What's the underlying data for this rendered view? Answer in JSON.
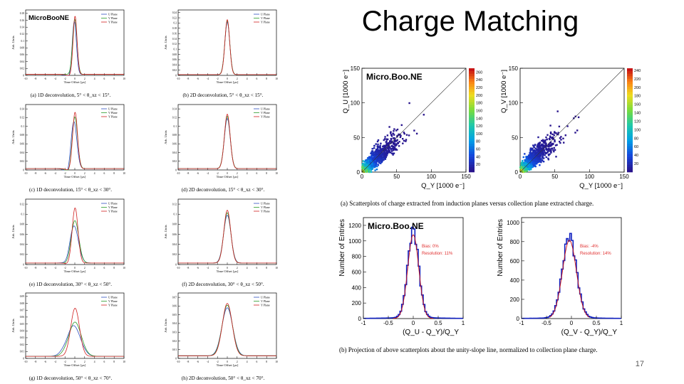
{
  "slide": {
    "title": "Charge Matching",
    "page_number": "17"
  },
  "chart_data": [
    {
      "type": "line",
      "panel": "a",
      "caption": "(a) 1D deconvolution, 5° < θ_xz < 15°.",
      "logo": "MicroBooNE",
      "xlabel": "Time Offset [µs]",
      "ylabel": "Arb. Units",
      "x_ticks": [
        "-10",
        "-8",
        "-6",
        "-4",
        "-2",
        "0",
        "2",
        "4",
        "6",
        "8",
        "10"
      ],
      "y_ticks": [
        "0",
        "0.02",
        "0.04",
        "0.06",
        "0.08",
        "0.1",
        "0.12",
        "0.14",
        "0.16",
        "0.18"
      ],
      "ylim": [
        0,
        0.19
      ],
      "legend": [
        "U Plane",
        "V Plane",
        "Y Plane"
      ],
      "series": [
        {
          "name": "U Plane",
          "peak": 0.155,
          "center": -0.1,
          "width": 0.42,
          "undershoot": 0.008
        },
        {
          "name": "V Plane",
          "peak": 0.16,
          "center": 0.0,
          "width": 0.45,
          "undershoot": 0.0
        },
        {
          "name": "Y Plane",
          "peak": 0.17,
          "center": 0.05,
          "width": 0.4,
          "undershoot": 0.004
        }
      ]
    },
    {
      "type": "line",
      "panel": "b",
      "caption": "(b) 2D deconvolution, 5° < θ_xz < 15°.",
      "xlabel": "Time Offset [µs]",
      "ylabel": "Arb. Units",
      "x_ticks": [
        "-10",
        "-8",
        "-6",
        "-4",
        "-2",
        "0",
        "2",
        "4",
        "6",
        "8",
        "10"
      ],
      "y_ticks": [
        "0",
        "0.02",
        "0.04",
        "0.06",
        "0.08",
        "0.1",
        "0.12",
        "0.14",
        "0.16",
        "0.18",
        "0.2",
        "0.22",
        "0.24"
      ],
      "ylim": [
        0,
        0.25
      ],
      "legend": [
        "U Plane",
        "V Plane",
        "Y Plane"
      ],
      "series": [
        {
          "name": "U Plane",
          "peak": 0.2,
          "center": 0.0,
          "width": 0.5,
          "undershoot": 0
        },
        {
          "name": "V Plane",
          "peak": 0.205,
          "center": 0.0,
          "width": 0.5,
          "undershoot": 0
        },
        {
          "name": "Y Plane",
          "peak": 0.21,
          "center": 0.0,
          "width": 0.48,
          "undershoot": 0
        }
      ]
    },
    {
      "type": "line",
      "panel": "c",
      "caption": "(c) 1D deconvolution, 15° < θ_xz < 30°.",
      "xlabel": "Time Offset [µs]",
      "ylabel": "Arb. Units",
      "x_ticks": [
        "-10",
        "-8",
        "-6",
        "-4",
        "-2",
        "0",
        "2",
        "4",
        "6",
        "8",
        "10"
      ],
      "y_ticks": [
        "0",
        "0.02",
        "0.04",
        "0.06",
        "0.08",
        "0.1",
        "0.12",
        "0.14"
      ],
      "ylim": [
        0,
        0.15
      ],
      "legend": [
        "U Plane",
        "V Plane",
        "Y Plane"
      ],
      "series": [
        {
          "name": "U Plane",
          "peak": 0.11,
          "center": -0.2,
          "width": 0.6,
          "undershoot": 0.015
        },
        {
          "name": "V Plane",
          "peak": 0.12,
          "center": 0.0,
          "width": 0.55,
          "undershoot": 0.01
        },
        {
          "name": "Y Plane",
          "peak": 0.13,
          "center": 0.05,
          "width": 0.5,
          "undershoot": 0.004
        }
      ]
    },
    {
      "type": "line",
      "panel": "d",
      "caption": "(d) 2D deconvolution, 15° < θ_xz < 30°.",
      "xlabel": "Time Offset [µs]",
      "ylabel": "Arb. Units",
      "x_ticks": [
        "-10",
        "-8",
        "-6",
        "-4",
        "-2",
        "0",
        "2",
        "4",
        "6",
        "8",
        "10"
      ],
      "y_ticks": [
        "0",
        "0.02",
        "0.04",
        "0.06",
        "0.08",
        "0.1",
        "0.12",
        "0.14"
      ],
      "ylim": [
        0,
        0.15
      ],
      "legend": [
        "U Plane",
        "V Plane",
        "Y Plane"
      ],
      "series": [
        {
          "name": "U Plane",
          "peak": 0.115,
          "center": 0.0,
          "width": 0.6,
          "undershoot": 0
        },
        {
          "name": "V Plane",
          "peak": 0.12,
          "center": 0.0,
          "width": 0.6,
          "undershoot": 0
        },
        {
          "name": "Y Plane",
          "peak": 0.125,
          "center": 0.0,
          "width": 0.58,
          "undershoot": 0
        }
      ]
    },
    {
      "type": "line",
      "panel": "e",
      "caption": "(e) 1D deconvolution, 30° < θ_xz < 50°.",
      "xlabel": "Time Offset [µs]",
      "ylabel": "Arb. Units",
      "x_ticks": [
        "-10",
        "-8",
        "-6",
        "-4",
        "-2",
        "0",
        "2",
        "4",
        "6",
        "8",
        "10"
      ],
      "y_ticks": [
        "0",
        "0.02",
        "0.04",
        "0.06",
        "0.08",
        "0.1",
        "0.12"
      ],
      "ylim": [
        0,
        0.13
      ],
      "legend": [
        "U Plane",
        "V Plane",
        "Y Plane"
      ],
      "series": [
        {
          "name": "U Plane",
          "peak": 0.075,
          "center": -0.2,
          "width": 0.9,
          "undershoot": 0.01
        },
        {
          "name": "V Plane",
          "peak": 0.085,
          "center": 0.0,
          "width": 0.8,
          "undershoot": 0.006
        },
        {
          "name": "Y Plane",
          "peak": 0.11,
          "center": 0.05,
          "width": 0.6,
          "undershoot": 0.003
        }
      ]
    },
    {
      "type": "line",
      "panel": "f",
      "caption": "(f) 2D deconvolution, 30° < θ_xz < 50°.",
      "xlabel": "Time Offset [µs]",
      "ylabel": "Arb. Units",
      "x_ticks": [
        "-10",
        "-8",
        "-6",
        "-4",
        "-2",
        "0",
        "2",
        "4",
        "6",
        "8",
        "10"
      ],
      "y_ticks": [
        "0",
        "0.02",
        "0.04",
        "0.06",
        "0.08",
        "0.1",
        "0.12"
      ],
      "ylim": [
        0,
        0.13
      ],
      "legend": [
        "U Plane",
        "V Plane",
        "Y Plane"
      ],
      "series": [
        {
          "name": "U Plane",
          "peak": 0.095,
          "center": 0.0,
          "width": 0.75,
          "undershoot": 0
        },
        {
          "name": "V Plane",
          "peak": 0.1,
          "center": 0.0,
          "width": 0.72,
          "undershoot": 0
        },
        {
          "name": "Y Plane",
          "peak": 0.105,
          "center": 0.0,
          "width": 0.7,
          "undershoot": 0
        }
      ]
    },
    {
      "type": "line",
      "panel": "g",
      "caption": "(g) 1D deconvolution, 50° < θ_xz < 70°.",
      "xlabel": "Time Offset [µs]",
      "ylabel": "Arb. Units",
      "x_ticks": [
        "-10",
        "-8",
        "-6",
        "-4",
        "-2",
        "0",
        "2",
        "4",
        "6",
        "8",
        "10"
      ],
      "y_ticks": [
        "0",
        "0.01",
        "0.02",
        "0.03",
        "0.04",
        "0.05",
        "0.06",
        "0.07",
        "0.08",
        "0.09"
      ],
      "ylim": [
        0,
        0.095
      ],
      "legend": [
        "U Plane",
        "V Plane",
        "Y Plane"
      ],
      "series": [
        {
          "name": "U Plane",
          "peak": 0.045,
          "center": -0.3,
          "width": 1.4,
          "undershoot": 0.003
        },
        {
          "name": "V Plane",
          "peak": 0.05,
          "center": 0.0,
          "width": 1.3,
          "undershoot": 0.002
        },
        {
          "name": "Y Plane",
          "peak": 0.07,
          "center": 0.05,
          "width": 0.9,
          "undershoot": 0.001
        }
      ]
    },
    {
      "type": "line",
      "panel": "h",
      "caption": "(h) 2D deconvolution, 50° < θ_xz < 70°.",
      "xlabel": "Time Offset [µs]",
      "ylabel": "Arb. Units",
      "x_ticks": [
        "-10",
        "-8",
        "-6",
        "-4",
        "-2",
        "0",
        "2",
        "4",
        "6",
        "8",
        "10"
      ],
      "y_ticks": [
        "0",
        "0.01",
        "0.02",
        "0.03",
        "0.04",
        "0.05",
        "0.06",
        "0.07"
      ],
      "ylim": [
        0,
        0.075
      ],
      "legend": [
        "U Plane",
        "V Plane",
        "Y Plane"
      ],
      "series": [
        {
          "name": "U Plane",
          "peak": 0.055,
          "center": 0.0,
          "width": 1.1,
          "undershoot": 0
        },
        {
          "name": "V Plane",
          "peak": 0.058,
          "center": 0.0,
          "width": 1.05,
          "undershoot": 0
        },
        {
          "name": "Y Plane",
          "peak": 0.06,
          "center": 0.0,
          "width": 1.0,
          "undershoot": 0
        }
      ]
    },
    {
      "type": "heatmap",
      "panel": "scatter-u",
      "logo": "Micro.Boo.NE",
      "xlabel": "Q_Y [1000 e⁻]",
      "ylabel": "Q_U [1000 e⁻]",
      "x_ticks": [
        "0",
        "50",
        "100",
        "150"
      ],
      "y_ticks": [
        "0",
        "50",
        "100",
        "150"
      ],
      "xlim": [
        0,
        150
      ],
      "ylim": [
        0,
        150
      ],
      "z_ticks": [
        "20",
        "40",
        "60",
        "80",
        "100",
        "120",
        "140",
        "160",
        "180",
        "200",
        "220",
        "240",
        "260"
      ],
      "zlim": [
        0,
        270
      ]
    },
    {
      "type": "heatmap",
      "panel": "scatter-v",
      "xlabel": "Q_Y [1000 e⁻]",
      "ylabel": "Q_V [1000 e⁻]",
      "x_ticks": [
        "0",
        "50",
        "100",
        "150"
      ],
      "y_ticks": [
        "0",
        "50",
        "100",
        "150"
      ],
      "xlim": [
        0,
        150
      ],
      "ylim": [
        0,
        150
      ],
      "z_ticks": [
        "20",
        "40",
        "60",
        "80",
        "100",
        "120",
        "140",
        "160",
        "180",
        "200",
        "220",
        "240"
      ],
      "zlim": [
        0,
        245
      ]
    },
    {
      "type": "bar",
      "panel": "proj-u",
      "logo": "Micro.Boo.NE",
      "xlabel": "(Q_U - Q_Y)/Q_Y",
      "ylabel": "Number of Entries",
      "x_ticks": [
        "-1",
        "-0.5",
        "0",
        "0.5",
        "1"
      ],
      "y_ticks": [
        "0",
        "200",
        "400",
        "600",
        "800",
        "1000",
        "1200"
      ],
      "xlim": [
        -1,
        1
      ],
      "ylim": [
        0,
        1300
      ],
      "bias": "Bias: 0%",
      "resolution": "Resolution: 11%",
      "peak_entries": 1100,
      "mean": 0.0,
      "sigma": 0.11
    },
    {
      "type": "bar",
      "panel": "proj-v",
      "xlabel": "(Q_V - Q_Y)/Q_Y",
      "ylabel": "Number of Entries",
      "x_ticks": [
        "-1",
        "-0.5",
        "0",
        "0.5",
        "1"
      ],
      "y_ticks": [
        "0",
        "200",
        "400",
        "600",
        "800",
        "1000"
      ],
      "xlim": [
        -1,
        1
      ],
      "ylim": [
        0,
        1050
      ],
      "bias": "Bias: -4%",
      "resolution": "Resolution: 14%",
      "peak_entries": 830,
      "mean": -0.04,
      "sigma": 0.14
    }
  ],
  "captions": {
    "scatter": "(a) Scatterplots of charge extracted from induction planes versus collection plane extracted charge.",
    "projection": "(b) Projection of above scatterplots about the unity-slope line, normalized to collection plane charge."
  },
  "colors": {
    "u_plane": "#3050c0",
    "v_plane": "#2a9a2a",
    "y_plane": "#d02020",
    "hist": "#1020c0",
    "fit": "#d01010",
    "fit_text": "#e03030"
  }
}
